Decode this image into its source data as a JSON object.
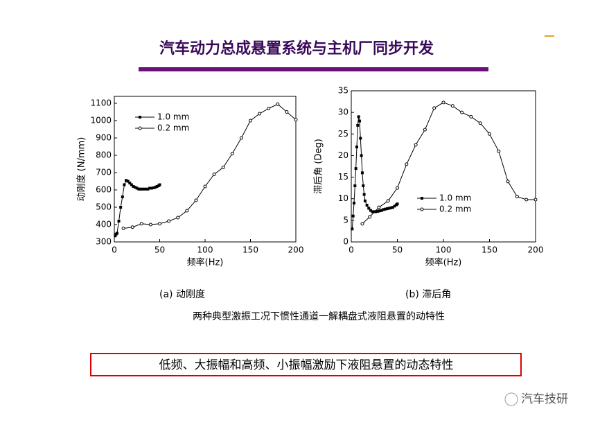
{
  "title": "汽车动力总成悬置系统与主机厂同步开发",
  "chart_data": [
    {
      "type": "line",
      "caption": "(a)  动刚度",
      "xlabel": "频率(Hz)",
      "ylabel": "动刚度 (N/mm)",
      "xlim": [
        0,
        200
      ],
      "ylim": [
        300,
        1140
      ],
      "xticks": [
        0,
        50,
        100,
        150,
        200
      ],
      "yticks": [
        300,
        400,
        500,
        600,
        700,
        800,
        900,
        1000,
        1100
      ],
      "legend": "upper left",
      "series": [
        {
          "name": "1.0 mm",
          "color": "#000000",
          "marker": "square",
          "x": [
            1,
            2,
            3,
            5,
            7,
            9,
            11,
            13,
            15,
            17,
            19,
            21,
            23,
            25,
            27,
            29,
            31,
            33,
            35,
            37,
            39,
            41,
            43,
            45,
            47,
            49,
            50
          ],
          "values": [
            335,
            345,
            350,
            420,
            500,
            560,
            630,
            655,
            650,
            640,
            630,
            620,
            615,
            610,
            605,
            605,
            605,
            605,
            605,
            605,
            610,
            610,
            612,
            615,
            620,
            625,
            630
          ]
        },
        {
          "name": "0.2 mm",
          "color": "#000000",
          "marker": "circle",
          "x": [
            10,
            20,
            30,
            40,
            50,
            60,
            70,
            80,
            90,
            100,
            110,
            120,
            130,
            140,
            150,
            160,
            170,
            180,
            190,
            200
          ],
          "values": [
            378,
            385,
            405,
            400,
            405,
            420,
            440,
            480,
            540,
            620,
            690,
            730,
            810,
            900,
            1000,
            1040,
            1070,
            1095,
            1050,
            1005
          ]
        }
      ]
    },
    {
      "type": "line",
      "caption": "(b)  滞后角",
      "xlabel": "频率(Hz)",
      "ylabel": "滞后角 (Deg)",
      "xlim": [
        0,
        200
      ],
      "ylim": [
        0,
        35
      ],
      "xticks": [
        0,
        50,
        100,
        150,
        200
      ],
      "yticks": [
        0,
        5,
        10,
        15,
        20,
        25,
        30,
        35
      ],
      "legend": "lower right",
      "series": [
        {
          "name": "1.0 mm",
          "color": "#000000",
          "marker": "square",
          "x": [
            1,
            2,
            3,
            4,
            5,
            6,
            7,
            8,
            9,
            10,
            11,
            12,
            13,
            14,
            15,
            17,
            19,
            21,
            23,
            25,
            27,
            29,
            31,
            33,
            35,
            37,
            39,
            41,
            43,
            45,
            47,
            49,
            50
          ],
          "values": [
            3,
            6,
            9,
            13,
            17,
            22,
            27,
            29,
            28,
            24,
            20,
            16,
            13,
            11,
            9.5,
            8.5,
            7.8,
            7.3,
            7,
            7,
            7,
            7.1,
            7.2,
            7.3,
            7.5,
            7.6,
            7.7,
            7.8,
            7.9,
            8,
            8.3,
            8.6,
            8.8
          ]
        },
        {
          "name": "0.2 mm",
          "color": "#000000",
          "marker": "circle",
          "x": [
            12,
            20,
            30,
            40,
            50,
            60,
            70,
            80,
            90,
            100,
            110,
            120,
            130,
            140,
            150,
            160,
            170,
            180,
            190,
            200
          ],
          "values": [
            4.2,
            5.8,
            8,
            9.5,
            12.5,
            18,
            22.5,
            26,
            31,
            32.3,
            31.5,
            30,
            29,
            27.5,
            25,
            21,
            14,
            10.5,
            9.8,
            9.8
          ]
        }
      ]
    }
  ],
  "figure_caption": "两种典型激振工况下惯性通道一解耦盘式液阻悬置的动特性",
  "conclusion": "低频、大振幅和高频、小振幅激励下液阻悬置的动态特性",
  "watermark": "汽车技研"
}
